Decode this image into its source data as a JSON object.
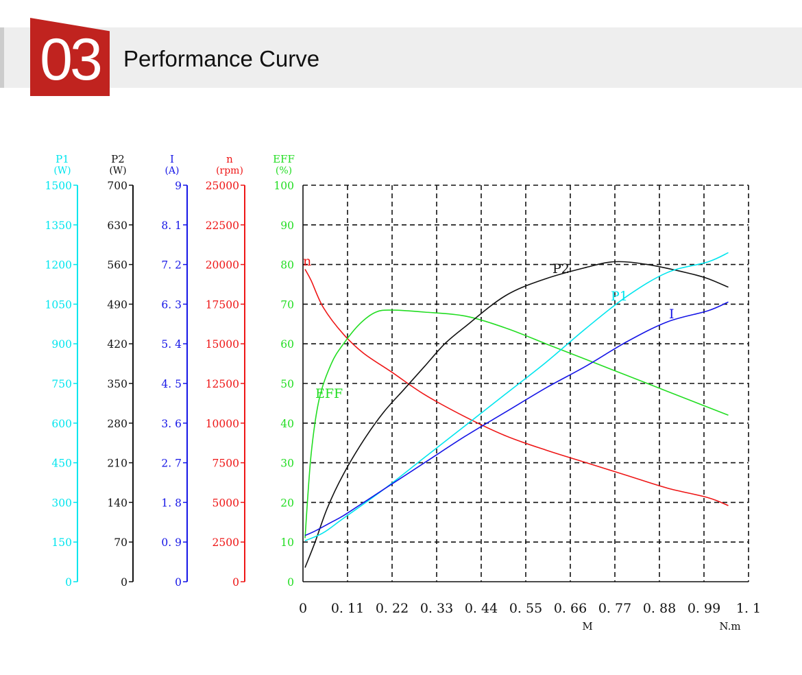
{
  "header": {
    "number": "03",
    "title": "Performance Curve"
  },
  "chart_data": {
    "type": "line",
    "x": {
      "min": 0,
      "max": 1.1,
      "ticks": [
        "0",
        "0. 11",
        "0. 22",
        "0. 33",
        "0. 44",
        "0. 55",
        "0. 66",
        "0. 77",
        "0. 88",
        "0. 99",
        "1. 1"
      ],
      "label_m": "M",
      "label_unit": "N.m"
    },
    "grid": true,
    "axes": [
      {
        "key": "P1",
        "name": "P1",
        "unit": "(W)",
        "color": "#00e5ee",
        "min": 0,
        "max": 1500,
        "ticks": [
          "0",
          "150",
          "300",
          "450",
          "600",
          "750",
          "900",
          "1050",
          "1200",
          "1350",
          "1500"
        ]
      },
      {
        "key": "P2",
        "name": "P2",
        "unit": "(W)",
        "color": "#111111",
        "min": 0,
        "max": 700,
        "ticks": [
          "0",
          "70",
          "140",
          "210",
          "280",
          "350",
          "420",
          "490",
          "560",
          "630",
          "700"
        ]
      },
      {
        "key": "I",
        "name": "I",
        "unit": "(A)",
        "color": "#1515e6",
        "min": 0,
        "max": 9,
        "ticks": [
          "0",
          "0. 9",
          "1. 8",
          "2. 7",
          "3. 6",
          "4. 5",
          "5. 4",
          "6. 3",
          "7. 2",
          "8. 1",
          "9"
        ]
      },
      {
        "key": "n",
        "name": "n",
        "unit": "(rpm)",
        "color": "#ee1515",
        "min": 0,
        "max": 25000,
        "ticks": [
          "0",
          "2500",
          "5000",
          "7500",
          "10000",
          "12500",
          "15000",
          "17500",
          "20000",
          "22500",
          "25000"
        ]
      },
      {
        "key": "EFF",
        "name": "EFF",
        "unit": "(%)",
        "color": "#22dd22",
        "min": 0,
        "max": 100,
        "ticks": [
          "0",
          "10",
          "20",
          "30",
          "40",
          "50",
          "60",
          "70",
          "80",
          "90",
          "100"
        ]
      }
    ],
    "series": [
      {
        "name": "n",
        "axis": "n",
        "color": "#ee1515",
        "label": "n",
        "x": [
          0.005,
          0.02,
          0.05,
          0.1,
          0.15,
          0.22,
          0.3,
          0.4,
          0.5,
          0.6,
          0.7,
          0.8,
          0.9,
          1.0,
          1.05
        ],
        "y": [
          19700,
          19000,
          17300,
          15600,
          14400,
          13200,
          11800,
          10400,
          9200,
          8300,
          7500,
          6700,
          5900,
          5300,
          4800
        ]
      },
      {
        "name": "EFF",
        "axis": "EFF",
        "color": "#22dd22",
        "label": "EFF",
        "x": [
          0.005,
          0.02,
          0.04,
          0.07,
          0.1,
          0.14,
          0.18,
          0.22,
          0.3,
          0.4,
          0.5,
          0.6,
          0.7,
          0.8,
          0.9,
          1.05
        ],
        "y": [
          11,
          32,
          46,
          55,
          60,
          65,
          68,
          68.5,
          68,
          67,
          64,
          60,
          56,
          52,
          48,
          42
        ]
      },
      {
        "name": "P2",
        "axis": "P2",
        "color": "#111111",
        "label": "P2",
        "x": [
          0.005,
          0.03,
          0.06,
          0.1,
          0.15,
          0.2,
          0.25,
          0.3,
          0.35,
          0.4,
          0.5,
          0.6,
          0.7,
          0.77,
          0.85,
          0.95,
          1.0,
          1.05
        ],
        "y": [
          25,
          70,
          130,
          190,
          250,
          300,
          340,
          380,
          420,
          450,
          505,
          535,
          555,
          565,
          560,
          545,
          535,
          520
        ]
      },
      {
        "name": "P1",
        "axis": "P1",
        "color": "#00e5ee",
        "label": "P1",
        "x": [
          0.005,
          0.05,
          0.1,
          0.2,
          0.3,
          0.4,
          0.5,
          0.6,
          0.7,
          0.8,
          0.9,
          1.0,
          1.05
        ],
        "y": [
          155,
          185,
          240,
          350,
          470,
          590,
          710,
          830,
          960,
          1080,
          1170,
          1210,
          1245
        ]
      },
      {
        "name": "I",
        "axis": "I",
        "color": "#1515e6",
        "label": "I",
        "x": [
          0.005,
          0.03,
          0.07,
          0.1,
          0.15,
          0.2,
          0.3,
          0.4,
          0.5,
          0.6,
          0.7,
          0.8,
          0.9,
          1.0,
          1.05
        ],
        "y": [
          1.05,
          1.15,
          1.35,
          1.5,
          1.8,
          2.1,
          2.7,
          3.3,
          3.85,
          4.4,
          4.9,
          5.45,
          5.9,
          6.15,
          6.35
        ]
      }
    ]
  }
}
